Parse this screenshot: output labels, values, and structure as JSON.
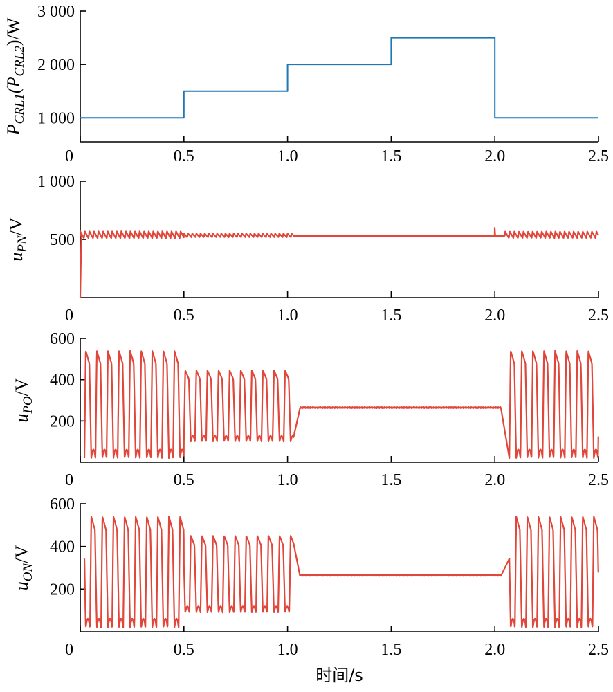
{
  "chart_data": [
    {
      "type": "line",
      "ylabel_parts": [
        "P",
        "CRL1",
        "(P",
        "CRL2",
        ")/W"
      ],
      "ylim": [
        550,
        3000
      ],
      "xlim": [
        0,
        2.5
      ],
      "yticks": [
        1000,
        2000,
        3000
      ],
      "ytick_labels": [
        "1 000",
        "2 000",
        "3 000"
      ],
      "xticks": [
        0,
        0.5,
        1.0,
        1.5,
        2.0,
        2.5
      ],
      "xtick_labels": [
        "0",
        "0.5",
        "1.0",
        "1.5",
        "2.0",
        "2.5"
      ],
      "colors": {
        "line": "#1f77b4"
      },
      "series": [
        {
          "x": [
            0,
            0.5,
            0.5,
            1.0,
            1.0,
            1.5,
            1.5,
            2.0,
            2.0,
            2.5
          ],
          "y": [
            1000,
            1000,
            1500,
            1500,
            2000,
            2000,
            2500,
            2500,
            1000,
            1000
          ]
        }
      ]
    },
    {
      "type": "line",
      "ylabel_parts": [
        "u",
        "PN",
        "/V"
      ],
      "ylim": [
        0,
        1000
      ],
      "xlim": [
        0,
        2.5
      ],
      "yticks": [
        500,
        1000
      ],
      "ytick_labels": [
        "500",
        "1 000"
      ],
      "xticks": [
        0,
        0.5,
        1.0,
        1.5,
        2.0,
        2.5
      ],
      "xtick_labels": [
        "0",
        "0.5",
        "1.0",
        "1.5",
        "2.0",
        "2.5"
      ],
      "colors": {
        "line": "#e0463a"
      },
      "segments": [
        {
          "kind": "ripple",
          "t0": 0.0,
          "t1": 0.5,
          "center": 540,
          "amp": 30,
          "period": 0.022
        },
        {
          "kind": "ripple",
          "t0": 0.5,
          "t1": 1.03,
          "center": 535,
          "amp": 16,
          "period": 0.02
        },
        {
          "kind": "flat",
          "t0": 1.03,
          "t1": 2.05,
          "value": 530
        },
        {
          "kind": "ripple",
          "t0": 2.05,
          "t1": 2.5,
          "center": 540,
          "amp": 28,
          "period": 0.022
        }
      ],
      "startup": {
        "t": 0.005,
        "from": 0,
        "to": 520
      },
      "spikes": [
        {
          "t": 1.999,
          "value": 600
        }
      ]
    },
    {
      "type": "line",
      "ylabel_parts": [
        "u",
        "PO",
        "/V"
      ],
      "ylim": [
        0,
        600
      ],
      "xlim": [
        0,
        2.5
      ],
      "yticks": [
        200,
        400,
        600
      ],
      "ytick_labels": [
        "200",
        "400",
        "600"
      ],
      "xticks": [
        0,
        0.5,
        1.0,
        1.5,
        2.0,
        2.5
      ],
      "xtick_labels": [
        "0",
        "0.5",
        "1.0",
        "1.5",
        "2.0",
        "2.5"
      ],
      "colors": {
        "line": "#e0463a"
      },
      "segments": [
        {
          "kind": "osc",
          "t0": 0.02,
          "t1": 0.5,
          "low": 20,
          "high": 540,
          "period": 0.0535
        },
        {
          "kind": "osc",
          "t0": 0.5,
          "t1": 1.03,
          "low": 100,
          "high": 445,
          "period": 0.0535
        },
        {
          "kind": "flat",
          "t0": 1.06,
          "t1": 2.03,
          "value": 265
        },
        {
          "kind": "osc",
          "t0": 2.07,
          "t1": 2.5,
          "low": 20,
          "high": 540,
          "period": 0.0535
        }
      ]
    },
    {
      "type": "line",
      "ylabel_parts": [
        "u",
        "ON",
        "/V"
      ],
      "ylim": [
        0,
        600
      ],
      "xlim": [
        0,
        2.5
      ],
      "yticks": [
        200,
        400,
        600
      ],
      "ytick_labels": [
        "200",
        "400",
        "600"
      ],
      "xticks": [
        0,
        0.5,
        1.0,
        1.5,
        2.0,
        2.5
      ],
      "xtick_labels": [
        "0",
        "0.5",
        "1.0",
        "1.5",
        "2.0",
        "2.5"
      ],
      "xlabel": "时间/s",
      "colors": {
        "line": "#e0463a"
      },
      "segments": [
        {
          "kind": "osc",
          "t0": 0.02,
          "t1": 0.5,
          "low": 20,
          "high": 540,
          "period": 0.0535,
          "phase": 0.5
        },
        {
          "kind": "osc",
          "t0": 0.5,
          "t1": 1.03,
          "low": 90,
          "high": 450,
          "period": 0.0535,
          "phase": 0.5
        },
        {
          "kind": "flat",
          "t0": 1.06,
          "t1": 2.03,
          "value": 265
        },
        {
          "kind": "osc",
          "t0": 2.07,
          "t1": 2.5,
          "low": 20,
          "high": 540,
          "period": 0.0535,
          "phase": 0.5
        }
      ]
    }
  ]
}
